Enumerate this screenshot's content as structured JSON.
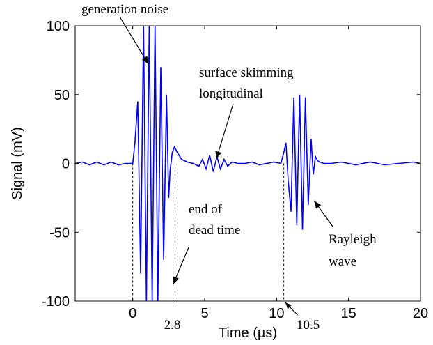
{
  "chart_data": {
    "type": "line",
    "title": "",
    "xlabel": "Time (µs)",
    "ylabel": "Signal (mV)",
    "xlim": [
      -4,
      20
    ],
    "ylim": [
      -100,
      100
    ],
    "x_ticks": [
      "0",
      "5",
      "10",
      "15",
      "20"
    ],
    "x_tick_values": [
      0,
      5,
      10,
      15,
      20
    ],
    "y_ticks": [
      "100",
      "50",
      "0",
      "-50",
      "-100"
    ],
    "y_tick_values": [
      100,
      50,
      0,
      -50,
      -100
    ],
    "grid": false,
    "line_color": "#0000ff",
    "series": [
      {
        "name": "",
        "x": [
          -4,
          -3.5,
          -3,
          -2.5,
          -2,
          -1.5,
          -1,
          -0.5,
          0,
          0.15,
          0.35,
          0.55,
          0.75,
          0.95,
          1.15,
          1.35,
          1.55,
          1.75,
          1.95,
          2.15,
          2.35,
          2.5,
          2.6,
          2.75,
          2.9,
          3.1,
          3.4,
          3.8,
          4.2,
          4.6,
          4.85,
          5.1,
          5.35,
          5.6,
          5.85,
          6.1,
          6.35,
          6.6,
          6.9,
          7.3,
          7.8,
          8.3,
          8.8,
          9.3,
          9.8,
          10.3,
          10.5,
          10.65,
          10.8,
          11.0,
          11.2,
          11.4,
          11.6,
          11.8,
          12.0,
          12.2,
          12.4,
          12.55,
          12.7,
          12.85,
          13.0,
          13.3,
          13.8,
          14.5,
          15.5,
          16.5,
          17.5,
          18.5,
          19.5,
          20
        ],
        "values": [
          0,
          1,
          -1,
          1,
          -1,
          1,
          -1,
          0,
          0,
          15,
          45,
          -80,
          100,
          -100,
          100,
          -100,
          100,
          -100,
          70,
          -70,
          50,
          -25,
          -5,
          8,
          12,
          8,
          3,
          1,
          0,
          -2,
          3,
          -4,
          6,
          -6,
          5,
          -4,
          3,
          -2,
          1,
          0,
          0,
          1,
          -1,
          0,
          1,
          0,
          8,
          15,
          -12,
          -35,
          48,
          -45,
          50,
          -48,
          48,
          -30,
          18,
          -8,
          5,
          2,
          1,
          0,
          0,
          1,
          -1,
          1,
          -1,
          0,
          1,
          0
        ]
      }
    ],
    "annotations": [
      {
        "id": "generation-noise",
        "lines": [
          "generation noise"
        ],
        "points_to": [
          1.1,
          72
        ]
      },
      {
        "id": "surface-skimming",
        "lines": [
          "surface skimming",
          "longitudinal"
        ],
        "points_to": [
          5.8,
          3
        ]
      },
      {
        "id": "dead-time",
        "lines": [
          "end of",
          "dead time"
        ],
        "points_to": [
          2.8,
          -88
        ]
      },
      {
        "id": "rayleigh",
        "lines": [
          "Rayleigh",
          "wave"
        ],
        "points_to": [
          12.6,
          -27
        ]
      }
    ],
    "markers": [
      {
        "x": 0,
        "label": ""
      },
      {
        "x": 2.8,
        "label": "2.8"
      },
      {
        "x": 10.5,
        "label": "10.5"
      }
    ]
  }
}
